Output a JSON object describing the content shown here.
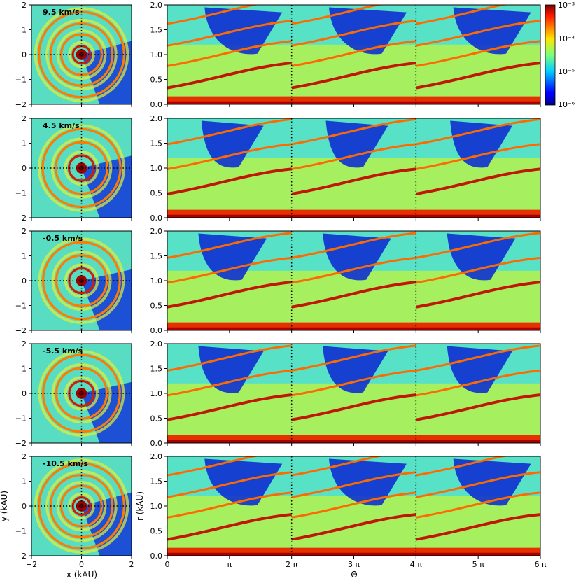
{
  "chart_data": {
    "type": "heatmap",
    "description_units": {
      "xy": "kAU",
      "theta": "rad",
      "r": "kAU"
    },
    "colorbar": {
      "scale": "log",
      "range": [
        1e-06,
        0.001
      ],
      "tick_labels": [
        "10⁻³",
        "10⁻⁴",
        "10⁻⁵",
        "10⁻⁶"
      ],
      "colormap": "jet"
    },
    "left_axes": {
      "xlabel": "x (kAU)",
      "ylabel": "y (kAU)",
      "xlim": [
        -2,
        2
      ],
      "ylim": [
        -2,
        2
      ],
      "xticks": [
        "−2",
        "0",
        "2"
      ],
      "yticks": [
        "2",
        "1",
        "0",
        "−1",
        "−2"
      ]
    },
    "right_axes": {
      "xlabel": "Θ",
      "ylabel": "r (kAU)",
      "xlim": [
        0,
        6
      ],
      "ylim": [
        0,
        2
      ],
      "xticks": [
        "0",
        "π",
        "2 π",
        "3 π",
        "4 π",
        "5 π",
        "6 π"
      ],
      "yticks": [
        "2.0",
        "1.5",
        "1.0",
        "0.5",
        "0.0"
      ],
      "dotted_lines_at_theta_over_pi": [
        2,
        4
      ]
    },
    "panels": [
      {
        "label": "9.5 km/s",
        "arms": [
          0.33,
          0.77,
          1.18,
          1.62
        ],
        "hole": [
          0.6,
          1.1
        ]
      },
      {
        "label": "4.5 km/s",
        "arms": [
          0.48,
          0.98,
          1.48
        ],
        "hole": [
          0.55,
          0.8
        ]
      },
      {
        "label": "-0.5 km/s",
        "arms": [
          0.47,
          0.96,
          1.46
        ],
        "hole": [
          0.5,
          0.85
        ]
      },
      {
        "label": "-5.5 km/s",
        "arms": [
          0.47,
          0.96,
          1.46
        ],
        "hole": [
          0.5,
          0.8
        ]
      },
      {
        "label": "-10.5 km/s",
        "arms": [
          0.33,
          0.77,
          1.18,
          1.62
        ],
        "hole": [
          0.6,
          1.1
        ]
      }
    ]
  }
}
